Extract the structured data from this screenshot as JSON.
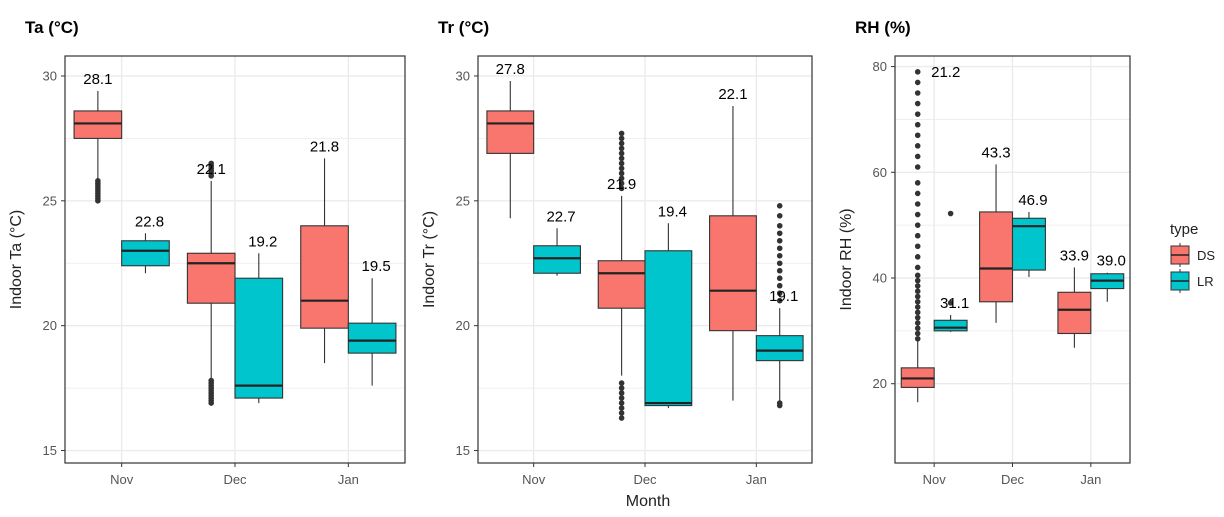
{
  "chart_data": {
    "type": "box",
    "xlabel": "Month",
    "categories": [
      "Nov",
      "Dec",
      "Jan"
    ],
    "legend": {
      "title": "type",
      "placement": "right",
      "items": [
        "DS",
        "LR"
      ]
    },
    "colors": {
      "DS": "#F8766D",
      "LR": "#00C5CD",
      "grid": "#EBEBEB",
      "border": "#333333"
    },
    "grid": true,
    "panels": [
      {
        "title": "Ta (°C)",
        "ylabel": "Indoor Ta (°C)",
        "ylim": [
          14.5,
          30.8
        ],
        "yticks": [
          15,
          20,
          25,
          30
        ],
        "series": [
          {
            "name": "DS",
            "boxes": [
              {
                "label": "28.1",
                "q1": 27.5,
                "median": 28.1,
                "q3": 28.6,
                "low": 25.5,
                "high": 29.4,
                "outliers": [
                  25.0,
                  25.1,
                  25.2,
                  25.3,
                  25.4,
                  25.5,
                  25.6,
                  25.7,
                  25.8
                ]
              },
              {
                "label": "22.1",
                "q1": 20.9,
                "median": 22.5,
                "q3": 22.9,
                "low": 17.9,
                "high": 25.8,
                "outliers": [
                  16.9,
                  17.0,
                  17.1,
                  17.2,
                  17.3,
                  17.4,
                  17.5,
                  17.6,
                  17.7,
                  17.8,
                  26.0,
                  26.1,
                  26.2,
                  26.3,
                  26.4,
                  26.5
                ]
              },
              {
                "label": "21.8",
                "q1": 19.9,
                "median": 21.0,
                "q3": 24.0,
                "low": 18.5,
                "high": 26.7,
                "outliers": []
              }
            ]
          },
          {
            "name": "LR",
            "boxes": [
              {
                "label": "22.8",
                "q1": 22.4,
                "median": 23.0,
                "q3": 23.4,
                "low": 22.1,
                "high": 23.7,
                "outliers": []
              },
              {
                "label": "19.2",
                "q1": 17.1,
                "median": 17.6,
                "q3": 21.9,
                "low": 16.9,
                "high": 22.9,
                "outliers": []
              },
              {
                "label": "19.5",
                "q1": 18.9,
                "median": 19.4,
                "q3": 20.1,
                "low": 17.6,
                "high": 21.9,
                "outliers": []
              }
            ]
          }
        ]
      },
      {
        "title": "Tr (°C)",
        "ylabel": "Indoor Tr (°C)",
        "ylim": [
          14.5,
          30.8
        ],
        "yticks": [
          15,
          20,
          25,
          30
        ],
        "series": [
          {
            "name": "DS",
            "boxes": [
              {
                "label": "27.8",
                "q1": 26.9,
                "median": 28.1,
                "q3": 28.6,
                "low": 24.3,
                "high": 29.8,
                "outliers": []
              },
              {
                "label": "21.9",
                "q1": 20.7,
                "median": 22.1,
                "q3": 22.6,
                "low": 18.0,
                "high": 25.2,
                "outliers": [
                  16.3,
                  16.5,
                  16.7,
                  16.9,
                  17.1,
                  17.3,
                  17.5,
                  17.7,
                  25.5,
                  25.7,
                  25.9,
                  26.1,
                  26.3,
                  26.5,
                  26.7,
                  26.9,
                  27.1,
                  27.3,
                  27.5,
                  27.7
                ]
              },
              {
                "label": "22.1",
                "q1": 19.8,
                "median": 21.4,
                "q3": 24.4,
                "low": 17.0,
                "high": 28.8,
                "outliers": []
              }
            ]
          },
          {
            "name": "LR",
            "boxes": [
              {
                "label": "22.7",
                "q1": 22.1,
                "median": 22.7,
                "q3": 23.2,
                "low": 22.0,
                "high": 23.9,
                "outliers": []
              },
              {
                "label": "19.4",
                "q1": 16.8,
                "median": 16.9,
                "q3": 23.0,
                "low": 16.7,
                "high": 24.1,
                "outliers": []
              },
              {
                "label": "19.1",
                "q1": 18.6,
                "median": 19.0,
                "q3": 19.6,
                "low": 17.0,
                "high": 20.7,
                "outliers": [
                  16.8,
                  16.9,
                  21.0,
                  21.3,
                  21.6,
                  21.9,
                  22.2,
                  22.5,
                  22.8,
                  23.1,
                  23.4,
                  23.7,
                  24.0,
                  24.4,
                  24.8
                ]
              }
            ]
          }
        ]
      },
      {
        "title": "RH (%)",
        "ylabel": "Indoor RH (%)",
        "ylim": [
          5,
          82
        ],
        "yticks": [
          20,
          40,
          60,
          80
        ],
        "series": [
          {
            "name": "DS",
            "boxes": [
              {
                "label": "21.2",
                "q1": 19.3,
                "median": 21.0,
                "q3": 23.0,
                "low": 16.5,
                "high": 28.0,
                "outliers": [
                  28.5,
                  29.5,
                  30.5,
                  31.5,
                  32.5,
                  33.5,
                  34.5,
                  35.5,
                  36.5,
                  37.5,
                  38.5,
                  39.5,
                  40.5,
                  42.0,
                  44.0,
                  46.0,
                  48.0,
                  50.0,
                  52.0,
                  54.0,
                  56.0,
                  58.0,
                  61.0,
                  63.0,
                  65.0,
                  67.0,
                  69.0,
                  71.0,
                  73.0,
                  75.0,
                  77.0,
                  79.0
                ]
              },
              {
                "label": "43.3",
                "q1": 35.5,
                "median": 41.8,
                "q3": 52.5,
                "low": 31.5,
                "high": 61.5,
                "outliers": []
              },
              {
                "label": "33.9",
                "q1": 29.5,
                "median": 34.0,
                "q3": 37.3,
                "low": 26.8,
                "high": 42.0,
                "outliers": []
              }
            ]
          },
          {
            "name": "LR",
            "boxes": [
              {
                "label": "31.1",
                "q1": 30.0,
                "median": 30.6,
                "q3": 32.0,
                "low": 29.8,
                "high": 33.0,
                "outliers": [
                  35.3,
                  52.2
                ]
              },
              {
                "label": "46.9",
                "q1": 41.5,
                "median": 49.8,
                "q3": 51.3,
                "low": 40.2,
                "high": 52.5,
                "outliers": []
              },
              {
                "label": "39.0",
                "q1": 38.0,
                "median": 39.5,
                "q3": 40.8,
                "low": 35.5,
                "high": 41.0,
                "outliers": []
              }
            ]
          }
        ]
      }
    ]
  }
}
